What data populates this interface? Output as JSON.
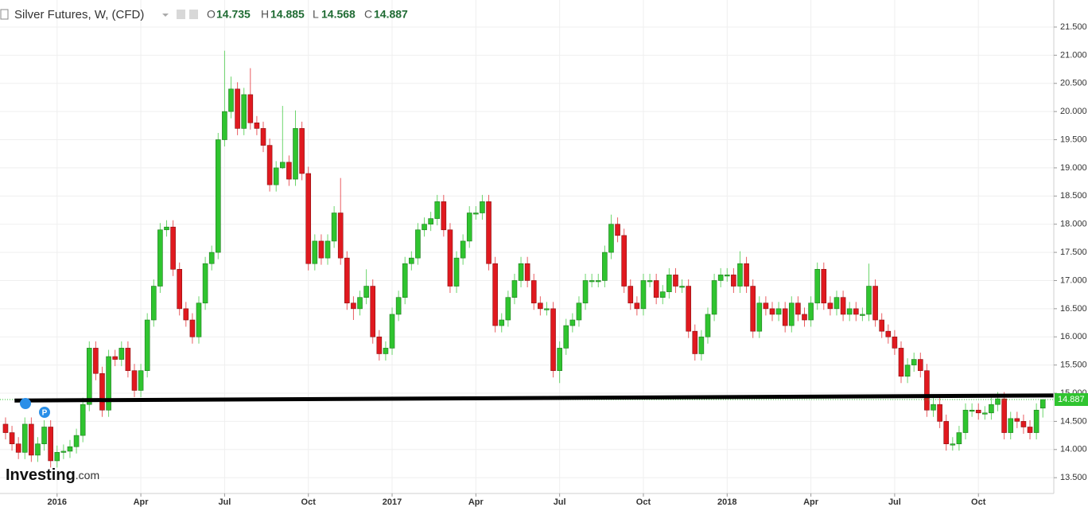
{
  "chart_data": {
    "type": "candlestick",
    "title": "Silver Futures, W, (CFD)",
    "ohlc_labels": [
      "O",
      "H",
      "L",
      "C"
    ],
    "brand": [
      "Investing",
      ".com"
    ],
    "marker_label": "P",
    "up_color": "#2fc42f",
    "down_color": "#e0191f",
    "line_color": "#000000",
    "grid": true,
    "ylim": [
      13.22,
      21.98
    ],
    "yticks": [
      {
        "value": 13.5,
        "label": "13.500"
      },
      {
        "value": 14,
        "label": "14.000"
      },
      {
        "value": 14.5,
        "label": "14.500"
      },
      {
        "value": 15,
        "label": "15.000"
      },
      {
        "value": 15.5,
        "label": "15.500"
      },
      {
        "value": 16,
        "label": "16.000"
      },
      {
        "value": 16.5,
        "label": "16.500"
      },
      {
        "value": 17,
        "label": "17.000"
      },
      {
        "value": 17.5,
        "label": "17.500"
      },
      {
        "value": 18,
        "label": "18.000"
      },
      {
        "value": 18.5,
        "label": "18.500"
      },
      {
        "value": 19,
        "label": "19.000"
      },
      {
        "value": 19.5,
        "label": "19.500"
      },
      {
        "value": 20,
        "label": "20.000"
      },
      {
        "value": 20.5,
        "label": "20.500"
      },
      {
        "value": 21,
        "label": "21.000"
      },
      {
        "value": 21.5,
        "label": "21.500"
      }
    ],
    "xlim": [
      -0.86,
      162.7
    ],
    "xticks": [
      {
        "value": 8,
        "label": "2016"
      },
      {
        "value": 21,
        "label": "Apr"
      },
      {
        "value": 34,
        "label": "Jul"
      },
      {
        "value": 47,
        "label": "Oct"
      },
      {
        "value": 60,
        "label": "2017"
      },
      {
        "value": 73,
        "label": "Apr"
      },
      {
        "value": 86,
        "label": "Jul"
      },
      {
        "value": 99,
        "label": "Oct"
      },
      {
        "value": 112,
        "label": "2018"
      },
      {
        "value": 125,
        "label": "Apr"
      },
      {
        "value": 138,
        "label": "Jul"
      },
      {
        "value": 151,
        "label": "Oct"
      }
    ],
    "trendline": {
      "x": [
        1.4,
        162.7
      ],
      "y": [
        14.87,
        14.96
      ]
    },
    "open": [
      14.45,
      14.3,
      14.1,
      13.95,
      14.45,
      13.9,
      14.1,
      14.4,
      13.8,
      13.95,
      13.97,
      14.05,
      14.25,
      14.8,
      15.8,
      15.35,
      14.7,
      15.65,
      15.6,
      15.8,
      15.4,
      15.05,
      15.4,
      16.3,
      16.9,
      17.9,
      17.95,
      17.2,
      16.5,
      16.3,
      16.0,
      16.6,
      17.3,
      17.5,
      19.5,
      20.0,
      20.4,
      19.7,
      20.3,
      19.8,
      19.7,
      19.4,
      18.7,
      19.0,
      19.1,
      18.8,
      19.7,
      18.9,
      17.3,
      17.7,
      17.4,
      17.7,
      18.2,
      17.4,
      16.6,
      16.5,
      16.7,
      16.9,
      16.0,
      15.7,
      15.8,
      16.4,
      16.7,
      17.3,
      17.4,
      17.9,
      18.0,
      18.1,
      18.4,
      17.9,
      16.9,
      17.4,
      17.7,
      18.2,
      18.2,
      18.4,
      17.3,
      16.2,
      16.3,
      16.7,
      17.0,
      17.3,
      17.0,
      16.6,
      16.5,
      16.5,
      15.4,
      15.8,
      16.2,
      16.3,
      16.6,
      17.0,
      17.0,
      17.0,
      17.5,
      18.0,
      17.8,
      16.9,
      16.6,
      16.5,
      17.0,
      17.0,
      16.7,
      16.8,
      17.1,
      16.9,
      16.9,
      16.1,
      15.7,
      16.0,
      16.4,
      17.0,
      17.1,
      17.1,
      16.9,
      17.3,
      16.9,
      16.1,
      16.6,
      16.5,
      16.4,
      16.5,
      16.2,
      16.6,
      16.4,
      16.3,
      16.6,
      17.2,
      16.6,
      16.5,
      16.7,
      16.4,
      16.5,
      16.4,
      16.4,
      16.9,
      16.3,
      16.1,
      16.0,
      15.8,
      15.3,
      15.5,
      15.6,
      15.4,
      14.7,
      14.8,
      14.5,
      14.1,
      14.1,
      14.3,
      14.7,
      14.7,
      14.65,
      14.65,
      14.8,
      14.9,
      14.3,
      14.55,
      14.5,
      14.4,
      14.3,
      14.735
    ],
    "high": [
      14.57,
      14.42,
      14.22,
      14.57,
      14.57,
      14.22,
      14.52,
      14.52,
      14.07,
      14.09,
      14.17,
      14.37,
      14.92,
      15.92,
      15.92,
      15.47,
      15.77,
      15.77,
      15.92,
      15.92,
      15.52,
      15.52,
      16.42,
      17.02,
      18.02,
      18.07,
      18.07,
      17.32,
      16.62,
      16.42,
      16.72,
      17.42,
      17.62,
      19.62,
      21.08,
      20.62,
      20.52,
      20.42,
      20.77,
      19.92,
      19.82,
      19.52,
      19.12,
      20.1,
      19.22,
      20.02,
      19.82,
      19.02,
      17.82,
      17.82,
      17.82,
      18.32,
      18.82,
      17.52,
      16.72,
      16.82,
      17.2,
      17.02,
      16.12,
      15.92,
      16.52,
      16.82,
      17.42,
      17.52,
      18.02,
      18.12,
      18.22,
      18.52,
      18.52,
      18.02,
      17.52,
      17.82,
      18.32,
      18.32,
      18.52,
      18.52,
      17.42,
      16.42,
      16.82,
      17.12,
      17.42,
      17.42,
      17.12,
      16.72,
      16.62,
      16.62,
      15.92,
      16.32,
      16.42,
      16.72,
      17.12,
      17.12,
      17.12,
      17.62,
      18.17,
      18.12,
      17.92,
      17.02,
      16.72,
      17.12,
      17.12,
      17.12,
      16.92,
      17.22,
      17.22,
      17.02,
      17.02,
      16.22,
      16.12,
      16.52,
      17.12,
      17.22,
      17.22,
      17.22,
      17.52,
      17.42,
      17.02,
      16.72,
      16.72,
      16.62,
      16.62,
      16.62,
      16.72,
      16.72,
      16.52,
      16.72,
      17.32,
      17.32,
      16.72,
      16.82,
      16.82,
      16.62,
      16.62,
      16.52,
      17.3,
      17.02,
      16.42,
      16.22,
      16.12,
      15.92,
      15.62,
      15.72,
      15.72,
      15.52,
      14.92,
      14.92,
      14.62,
      14.22,
      14.42,
      14.82,
      14.82,
      14.82,
      14.77,
      14.92,
      15.02,
      15.02,
      14.67,
      14.67,
      14.62,
      14.52,
      14.82,
      14.885
    ],
    "low": [
      14.18,
      13.98,
      13.83,
      13.83,
      13.78,
      13.78,
      13.98,
      13.68,
      13.68,
      13.83,
      13.85,
      13.93,
      14.13,
      14.68,
      15.23,
      14.58,
      14.58,
      15.48,
      15.48,
      15.28,
      14.93,
      14.93,
      15.28,
      16.18,
      16.78,
      17.78,
      17.08,
      16.38,
      16.18,
      15.88,
      15.88,
      16.48,
      17.18,
      17.38,
      19.38,
      19.88,
      19.58,
      19.58,
      19.68,
      19.58,
      19.28,
      18.58,
      18.58,
      18.98,
      18.68,
      18.68,
      18.78,
      17.18,
      17.18,
      17.28,
      17.28,
      17.58,
      17.28,
      16.48,
      16.3,
      16.38,
      16.58,
      15.88,
      15.58,
      15.58,
      15.68,
      16.28,
      16.58,
      17.18,
      17.28,
      17.78,
      17.88,
      17.98,
      17.78,
      16.78,
      16.78,
      17.28,
      17.58,
      18.08,
      18.08,
      17.18,
      16.08,
      16.08,
      16.18,
      16.58,
      16.88,
      16.88,
      16.48,
      16.38,
      16.38,
      15.28,
      15.18,
      15.68,
      16.08,
      16.18,
      16.48,
      16.88,
      16.88,
      16.88,
      17.38,
      17.68,
      16.78,
      16.48,
      16.38,
      16.38,
      16.88,
      16.58,
      16.58,
      16.68,
      16.78,
      16.78,
      15.98,
      15.58,
      15.58,
      15.88,
      16.28,
      16.88,
      16.98,
      16.78,
      16.78,
      16.78,
      15.98,
      15.98,
      16.38,
      16.28,
      16.28,
      16.08,
      16.08,
      16.28,
      16.18,
      16.18,
      16.48,
      16.48,
      16.38,
      16.38,
      16.28,
      16.28,
      16.28,
      16.28,
      16.28,
      16.18,
      15.98,
      15.88,
      15.68,
      15.18,
      15.18,
      15.38,
      15.28,
      14.58,
      14.58,
      14.38,
      13.98,
      13.98,
      13.98,
      14.18,
      14.58,
      14.53,
      14.53,
      14.53,
      14.68,
      14.18,
      14.18,
      14.38,
      14.28,
      14.18,
      14.18,
      14.568
    ],
    "close": [
      14.3,
      14.1,
      13.95,
      14.45,
      13.9,
      14.1,
      14.4,
      13.8,
      13.95,
      13.97,
      14.05,
      14.25,
      14.8,
      15.8,
      15.35,
      14.7,
      15.65,
      15.6,
      15.8,
      15.4,
      15.05,
      15.4,
      16.3,
      16.9,
      17.9,
      17.95,
      17.2,
      16.5,
      16.3,
      16.0,
      16.6,
      17.3,
      17.5,
      19.5,
      20.0,
      20.4,
      19.7,
      20.3,
      19.8,
      19.7,
      19.4,
      18.7,
      19.0,
      19.1,
      18.8,
      19.7,
      18.9,
      17.3,
      17.7,
      17.4,
      17.7,
      18.2,
      17.4,
      16.6,
      16.5,
      16.7,
      16.9,
      16.0,
      15.7,
      15.8,
      16.4,
      16.7,
      17.3,
      17.4,
      17.9,
      18.0,
      18.1,
      18.4,
      17.9,
      16.9,
      17.4,
      17.7,
      18.2,
      18.2,
      18.4,
      17.3,
      16.2,
      16.3,
      16.7,
      17.0,
      17.3,
      17.0,
      16.6,
      16.5,
      16.5,
      15.4,
      15.8,
      16.2,
      16.3,
      16.6,
      17.0,
      17.0,
      17.0,
      17.5,
      18.0,
      17.8,
      16.9,
      16.6,
      16.5,
      17.0,
      17.0,
      16.7,
      16.8,
      17.1,
      16.9,
      16.9,
      16.1,
      15.7,
      16.0,
      16.4,
      17.0,
      17.1,
      17.1,
      16.9,
      17.3,
      16.9,
      16.1,
      16.6,
      16.5,
      16.4,
      16.5,
      16.2,
      16.6,
      16.4,
      16.3,
      16.6,
      17.2,
      16.6,
      16.5,
      16.7,
      16.4,
      16.5,
      16.4,
      16.4,
      16.9,
      16.3,
      16.1,
      16.0,
      15.8,
      15.3,
      15.5,
      15.6,
      15.4,
      14.7,
      14.8,
      14.5,
      14.1,
      14.1,
      14.3,
      14.7,
      14.7,
      14.65,
      14.65,
      14.8,
      14.9,
      14.3,
      14.55,
      14.5,
      14.4,
      14.3,
      14.7,
      14.887
    ]
  }
}
